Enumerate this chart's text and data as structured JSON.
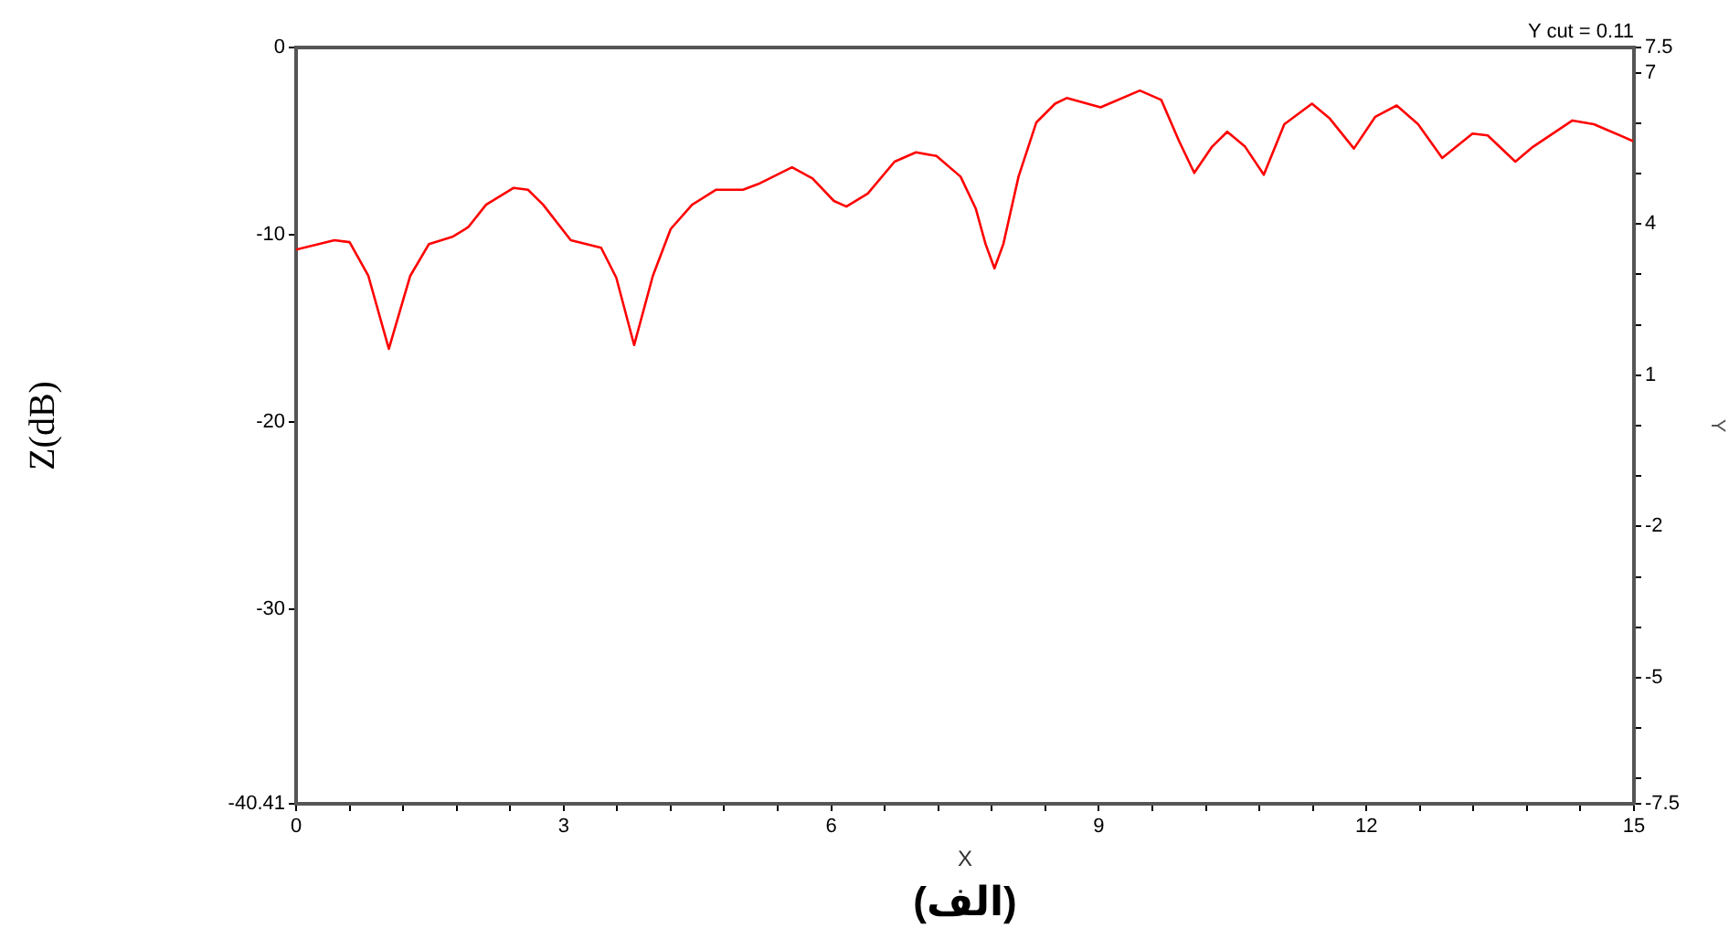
{
  "chart_data": {
    "type": "line",
    "xlabel": "X",
    "ylabel": "Z(dB)",
    "y2label": "Y",
    "annotations": [
      "Y cut = 0.11",
      "(الف)"
    ],
    "xlim": [
      0,
      15
    ],
    "xticks": [
      0,
      {
        "value": 0.6,
        "label": null
      },
      {
        "value": 1.2,
        "label": null
      },
      {
        "value": 1.8,
        "label": null
      },
      {
        "value": 2.4,
        "label": null
      },
      3,
      {
        "value": 3.6,
        "label": null
      },
      {
        "value": 4.2,
        "label": null
      },
      {
        "value": 4.8,
        "label": null
      },
      {
        "value": 5.4,
        "label": null
      },
      6,
      {
        "value": 6.6,
        "label": null
      },
      {
        "value": 7.2,
        "label": null
      },
      {
        "value": 7.8,
        "label": null
      },
      {
        "value": 8.4,
        "label": null
      },
      9,
      {
        "value": 9.6,
        "label": null
      },
      {
        "value": 10.2,
        "label": null
      },
      {
        "value": 10.8,
        "label": null
      },
      {
        "value": 11.4,
        "label": null
      },
      12,
      {
        "value": 12.6,
        "label": null
      },
      {
        "value": 13.2,
        "label": null
      },
      {
        "value": 13.8,
        "label": null
      },
      {
        "value": 14.4,
        "label": null
      },
      15
    ],
    "ylim": [
      -40.41,
      0
    ],
    "yticks": [
      0,
      -10,
      -20,
      -30,
      {
        "value": -40.41,
        "label": "-40.41"
      }
    ],
    "y2lim": [
      -7.5,
      7.5
    ],
    "y2ticks": [
      7.5,
      7,
      {
        "value": 6,
        "label": null
      },
      {
        "value": 5,
        "label": null
      },
      4,
      {
        "value": 3,
        "label": null
      },
      {
        "value": 2,
        "label": null
      },
      1,
      {
        "value": 0,
        "label": null
      },
      {
        "value": -1,
        "label": null
      },
      -2,
      {
        "value": -3,
        "label": null
      },
      {
        "value": -4,
        "label": null
      },
      -5,
      {
        "value": -6,
        "label": null
      },
      {
        "value": -7,
        "label": null
      },
      -7.5
    ],
    "grid": false,
    "legend": false,
    "marker": "none",
    "line_style": "solid",
    "series": [
      {
        "color": "#ff0000",
        "x": [
          0,
          0.43,
          0.6,
          0.81,
          1.04,
          1.28,
          1.49,
          1.76,
          1.93,
          2.13,
          2.44,
          2.6,
          2.77,
          3.08,
          3.42,
          3.59,
          3.79,
          4.0,
          4.2,
          4.44,
          4.71,
          5.01,
          5.18,
          5.56,
          5.79,
          6.03,
          6.17,
          6.41,
          6.71,
          6.95,
          7.18,
          7.45,
          7.62,
          7.73,
          7.83,
          7.93,
          8.1,
          8.3,
          8.51,
          8.64,
          9.02,
          9.46,
          9.7,
          9.9,
          10.07,
          10.27,
          10.44,
          10.64,
          10.85,
          11.08,
          11.39,
          11.59,
          11.86,
          12.1,
          12.34,
          12.58,
          12.85,
          13.19,
          13.36,
          13.67,
          13.87,
          14.31,
          14.55,
          14.99
        ],
        "values": [
          -10.8,
          -10.3,
          -10.4,
          -12.2,
          -16.1,
          -12.2,
          -10.5,
          -10.1,
          -9.6,
          -8.4,
          -7.5,
          -7.6,
          -8.4,
          -10.3,
          -10.7,
          -12.3,
          -15.9,
          -12.2,
          -9.7,
          -8.4,
          -7.6,
          -7.6,
          -7.3,
          -6.4,
          -7.0,
          -8.2,
          -8.5,
          -7.8,
          -6.1,
          -5.6,
          -5.8,
          -6.9,
          -8.6,
          -10.5,
          -11.8,
          -10.5,
          -6.9,
          -4.0,
          -3.0,
          -2.7,
          -3.2,
          -2.3,
          -2.8,
          -5.0,
          -6.7,
          -5.3,
          -4.5,
          -5.3,
          -6.8,
          -4.1,
          -3.0,
          -3.8,
          -5.4,
          -3.7,
          -3.1,
          -4.1,
          -5.9,
          -4.6,
          -4.7,
          -6.1,
          -5.3,
          -3.9,
          -4.1,
          -5.0
        ]
      }
    ]
  }
}
